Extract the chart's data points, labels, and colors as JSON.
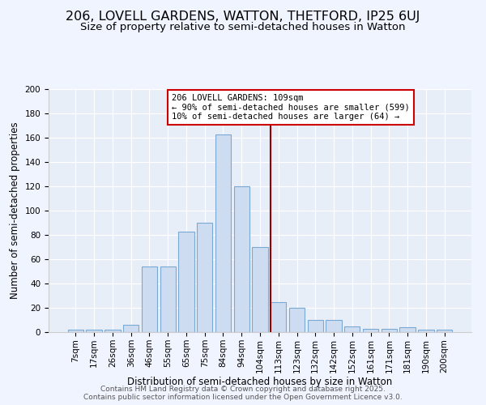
{
  "title1": "206, LOVELL GARDENS, WATTON, THETFORD, IP25 6UJ",
  "title2": "Size of property relative to semi-detached houses in Watton",
  "xlabel": "Distribution of semi-detached houses by size in Watton",
  "ylabel": "Number of semi-detached properties",
  "categories": [
    "7sqm",
    "17sqm",
    "26sqm",
    "36sqm",
    "46sqm",
    "55sqm",
    "65sqm",
    "75sqm",
    "84sqm",
    "94sqm",
    "104sqm",
    "113sqm",
    "123sqm",
    "132sqm",
    "142sqm",
    "152sqm",
    "161sqm",
    "171sqm",
    "181sqm",
    "190sqm",
    "200sqm"
  ],
  "values": [
    2,
    2,
    2,
    6,
    54,
    54,
    83,
    90,
    163,
    120,
    70,
    25,
    20,
    10,
    10,
    5,
    3,
    3,
    4,
    2,
    2
  ],
  "bar_color": "#cddcf0",
  "bar_edge_color": "#7aaad4",
  "vline_color": "#990000",
  "vline_x_index": 10.55,
  "annotation_title": "206 LOVELL GARDENS: 109sqm",
  "annotation_line1": "← 90% of semi-detached houses are smaller (599)",
  "annotation_line2": "10% of semi-detached houses are larger (64) →",
  "annotation_box_facecolor": "#ffffff",
  "annotation_box_edgecolor": "#cc0000",
  "ylim": [
    0,
    200
  ],
  "yticks": [
    0,
    20,
    40,
    60,
    80,
    100,
    120,
    140,
    160,
    180,
    200
  ],
  "fig_facecolor": "#f0f4ff",
  "ax_facecolor": "#e8eef8",
  "grid_color": "#ffffff",
  "footer1": "Contains HM Land Registry data © Crown copyright and database right 2025.",
  "footer2": "Contains public sector information licensed under the Open Government Licence v3.0.",
  "title1_fontsize": 11.5,
  "title2_fontsize": 9.5,
  "axis_label_fontsize": 8.5,
  "tick_fontsize": 7.5,
  "annotation_fontsize": 7.5,
  "footer_fontsize": 6.5
}
